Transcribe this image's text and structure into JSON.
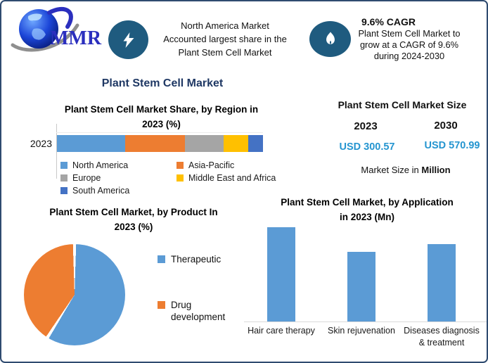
{
  "header": {
    "logo_text": "MMR",
    "insight_na": {
      "line1": "North America Market",
      "line2": "Accounted largest share in the",
      "line3": "Plant Stem Cell Market"
    },
    "insight_cagr": {
      "title": "9.6% CAGR",
      "line1": "Plant Stem Cell Market to",
      "line2": "grow at a CAGR of 9.6%",
      "line3": "during 2024-2030"
    }
  },
  "main_title": "Plant Stem Cell Market",
  "region_section": {
    "title_line1": "Plant Stem Cell Market Share, by Region in",
    "title_line2": "2023 (%)",
    "category_label": "2023"
  },
  "market_size": {
    "title": "Plant Stem Cell Market Size",
    "year_left": "2023",
    "year_right": "2030",
    "value_left": "USD 300.57",
    "value_right": "USD 570.99",
    "footnote_regular": "Market Size in",
    "footnote_bold": "Million"
  },
  "product_section": {
    "title_line1": "Plant Stem Cell Market, by Product In",
    "title_line2": "2023 (%)"
  },
  "application_section": {
    "title_line1": "Plant Stem Cell Market, by Application",
    "title_line2": "in 2023 (Mn)"
  },
  "colors": {
    "navy": "#1F3864",
    "value_blue": "#2595D0",
    "icon_disc": "#1F5B7F",
    "frame_border": "#2F4B70",
    "logo_blue": "#2B2FBE",
    "swoosh_gray": "#8F8F8F",
    "series_blue": "#5B9BD5",
    "series_orange": "#ED7D31",
    "series_gray": "#A5A5A5",
    "series_yellow": "#FFC000",
    "series_dark_blue": "#4472C4"
  },
  "chart_data": [
    {
      "type": "bar",
      "orientation": "horizontal-stacked",
      "title": "Plant Stem Cell Market Share, by Region in 2023 (%)",
      "categories": [
        "2023"
      ],
      "series": [
        {
          "name": "North America",
          "values": [
            33
          ],
          "color": "#5B9BD5"
        },
        {
          "name": "Asia-Pacific",
          "values": [
            29
          ],
          "color": "#ED7D31"
        },
        {
          "name": "Europe",
          "values": [
            19
          ],
          "color": "#A5A5A5"
        },
        {
          "name": "Middle East and Africa",
          "values": [
            12
          ],
          "color": "#FFC000"
        },
        {
          "name": "South America",
          "values": [
            7
          ],
          "color": "#4472C4"
        }
      ],
      "xlim": [
        0,
        100
      ],
      "grid": false,
      "legend_position": "bottom",
      "values_are_estimates": true
    },
    {
      "type": "pie",
      "title": "Plant Stem Cell Market, by Product In 2023 (%)",
      "labels": [
        "Therapeutic",
        "Drug development"
      ],
      "values": [
        59,
        41
      ],
      "colors": [
        "#5B9BD5",
        "#ED7D31"
      ],
      "start_angle": "12-oclock",
      "direction": "clockwise",
      "legend_position": "right",
      "values_are_estimates": true
    },
    {
      "type": "bar",
      "title": "Plant Stem Cell Market, by Application in 2023 (Mn)",
      "categories": [
        "Hair care therapy",
        "Skin rejuvenation",
        "Diseases diagnosis & treatment"
      ],
      "values": [
        1.0,
        0.74,
        0.82
      ],
      "bar_color": "#5B9BD5",
      "value_axis_visible": false,
      "grid": false,
      "values_are_estimates": true
    }
  ]
}
